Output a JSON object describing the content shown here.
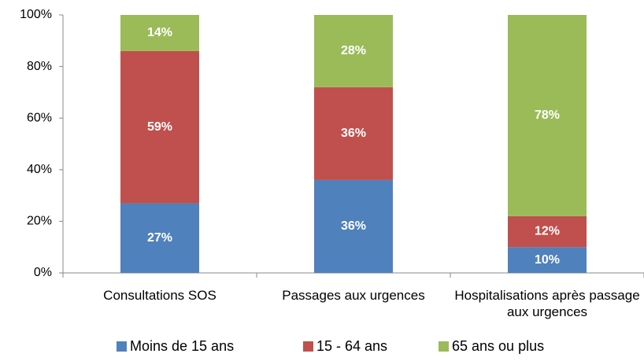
{
  "chart_data": {
    "type": "stacked-bar",
    "categories": [
      "Consultations SOS",
      "Passages aux urgences",
      "Hospitalisations après passage aux urgences"
    ],
    "series": [
      {
        "name": "Moins de 15 ans",
        "color": "#4f81bd",
        "values": [
          27,
          36,
          10
        ],
        "value_labels": [
          "27%",
          "36%",
          "10%"
        ]
      },
      {
        "name": "15 - 64 ans",
        "color": "#c0504d",
        "values": [
          59,
          36,
          12
        ],
        "value_labels": [
          "59%",
          "36%",
          "12%"
        ]
      },
      {
        "name": "65 ans ou plus",
        "color": "#9bbb59",
        "values": [
          14,
          28,
          78
        ],
        "value_labels": [
          "14%",
          "28%",
          "78%"
        ]
      }
    ],
    "ylim": [
      0,
      100
    ],
    "yticks": [
      {
        "value": 0,
        "label": "0%"
      },
      {
        "value": 20,
        "label": "20%"
      },
      {
        "value": 40,
        "label": "40%"
      },
      {
        "value": 60,
        "label": "60%"
      },
      {
        "value": 80,
        "label": "80%"
      },
      {
        "value": 100,
        "label": "100%"
      }
    ],
    "legend": "bottom"
  }
}
